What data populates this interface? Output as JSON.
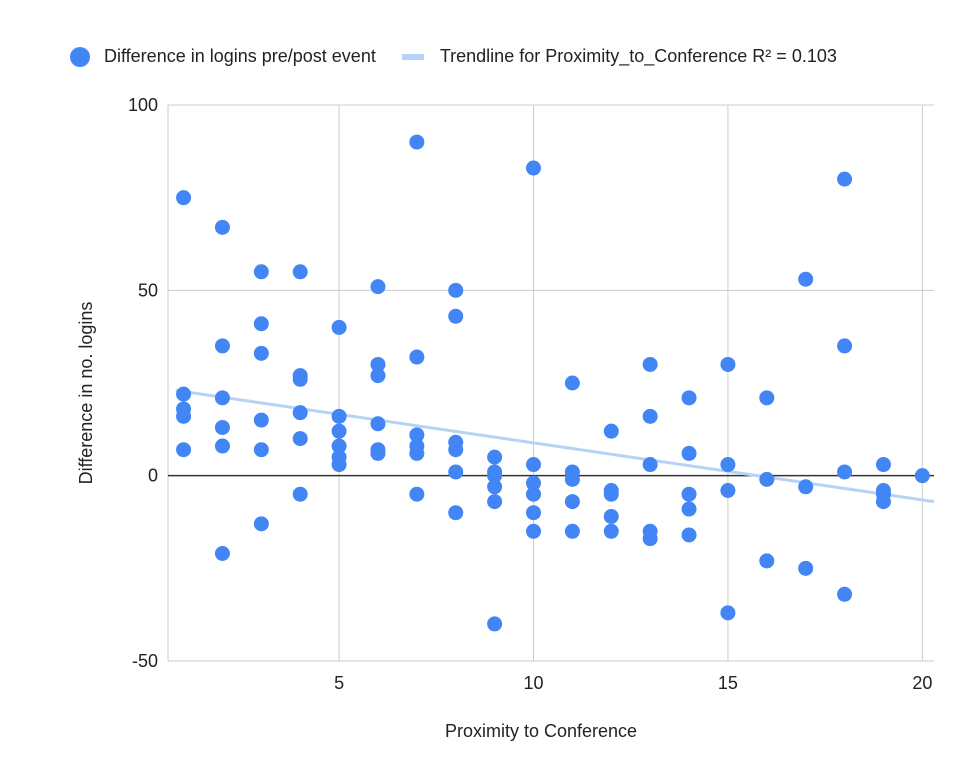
{
  "chart_data": {
    "type": "scatter",
    "xlabel": "Proximity to Conference",
    "ylabel": "Difference in no. logins",
    "xlim": [
      0.6,
      20.3
    ],
    "ylim": [
      -50,
      100
    ],
    "x_ticks": [
      5,
      10,
      15,
      20
    ],
    "y_ticks": [
      -50,
      0,
      50,
      100
    ],
    "grid": true,
    "legend_position": "top-left",
    "series": [
      {
        "name": "Difference in logins pre/post event",
        "color": "#4285f4",
        "points": [
          {
            "x": 1,
            "y": 75
          },
          {
            "x": 1,
            "y": 22
          },
          {
            "x": 1,
            "y": 18
          },
          {
            "x": 1,
            "y": 16
          },
          {
            "x": 1,
            "y": 7
          },
          {
            "x": 2,
            "y": 67
          },
          {
            "x": 2,
            "y": 35
          },
          {
            "x": 2,
            "y": 21
          },
          {
            "x": 2,
            "y": 13
          },
          {
            "x": 2,
            "y": 8
          },
          {
            "x": 2,
            "y": -21
          },
          {
            "x": 3,
            "y": 55
          },
          {
            "x": 3,
            "y": 41
          },
          {
            "x": 3,
            "y": 33
          },
          {
            "x": 3,
            "y": 15
          },
          {
            "x": 3,
            "y": 7
          },
          {
            "x": 3,
            "y": -13
          },
          {
            "x": 4,
            "y": 55
          },
          {
            "x": 4,
            "y": 27
          },
          {
            "x": 4,
            "y": 26
          },
          {
            "x": 4,
            "y": 17
          },
          {
            "x": 4,
            "y": 10
          },
          {
            "x": 4,
            "y": -5
          },
          {
            "x": 5,
            "y": 40
          },
          {
            "x": 5,
            "y": 16
          },
          {
            "x": 5,
            "y": 12
          },
          {
            "x": 5,
            "y": 8
          },
          {
            "x": 5,
            "y": 5
          },
          {
            "x": 5,
            "y": 3
          },
          {
            "x": 6,
            "y": 51
          },
          {
            "x": 6,
            "y": 30
          },
          {
            "x": 6,
            "y": 27
          },
          {
            "x": 6,
            "y": 14
          },
          {
            "x": 6,
            "y": 7
          },
          {
            "x": 6,
            "y": 6
          },
          {
            "x": 7,
            "y": 90
          },
          {
            "x": 7,
            "y": 32
          },
          {
            "x": 7,
            "y": 11
          },
          {
            "x": 7,
            "y": 8
          },
          {
            "x": 7,
            "y": 6
          },
          {
            "x": 7,
            "y": -5
          },
          {
            "x": 8,
            "y": 50
          },
          {
            "x": 8,
            "y": 43
          },
          {
            "x": 8,
            "y": 9
          },
          {
            "x": 8,
            "y": 7
          },
          {
            "x": 8,
            "y": 1
          },
          {
            "x": 8,
            "y": -10
          },
          {
            "x": 9,
            "y": 5
          },
          {
            "x": 9,
            "y": 1
          },
          {
            "x": 9,
            "y": 0
          },
          {
            "x": 9,
            "y": -3
          },
          {
            "x": 9,
            "y": -7
          },
          {
            "x": 9,
            "y": -40
          },
          {
            "x": 10,
            "y": 83
          },
          {
            "x": 10,
            "y": 3
          },
          {
            "x": 10,
            "y": -2
          },
          {
            "x": 10,
            "y": -5
          },
          {
            "x": 10,
            "y": -10
          },
          {
            "x": 10,
            "y": -15
          },
          {
            "x": 11,
            "y": 25
          },
          {
            "x": 11,
            "y": 1
          },
          {
            "x": 11,
            "y": -1
          },
          {
            "x": 11,
            "y": -7
          },
          {
            "x": 11,
            "y": -15
          },
          {
            "x": 12,
            "y": 12
          },
          {
            "x": 12,
            "y": -4
          },
          {
            "x": 12,
            "y": -5
          },
          {
            "x": 12,
            "y": -11
          },
          {
            "x": 12,
            "y": -15
          },
          {
            "x": 13,
            "y": 30
          },
          {
            "x": 13,
            "y": 16
          },
          {
            "x": 13,
            "y": 3
          },
          {
            "x": 13,
            "y": -15
          },
          {
            "x": 13,
            "y": -17
          },
          {
            "x": 14,
            "y": 21
          },
          {
            "x": 14,
            "y": 6
          },
          {
            "x": 14,
            "y": -5
          },
          {
            "x": 14,
            "y": -9
          },
          {
            "x": 14,
            "y": -16
          },
          {
            "x": 15,
            "y": 30
          },
          {
            "x": 15,
            "y": 3
          },
          {
            "x": 15,
            "y": -4
          },
          {
            "x": 15,
            "y": -37
          },
          {
            "x": 16,
            "y": 21
          },
          {
            "x": 16,
            "y": -1
          },
          {
            "x": 16,
            "y": -23
          },
          {
            "x": 17,
            "y": 53
          },
          {
            "x": 17,
            "y": -3
          },
          {
            "x": 17,
            "y": -25
          },
          {
            "x": 18,
            "y": 80
          },
          {
            "x": 18,
            "y": 35
          },
          {
            "x": 18,
            "y": 1
          },
          {
            "x": 18,
            "y": -32
          },
          {
            "x": 19,
            "y": 3
          },
          {
            "x": 19,
            "y": -4
          },
          {
            "x": 19,
            "y": -5
          },
          {
            "x": 19,
            "y": -7
          },
          {
            "x": 20,
            "y": 0
          }
        ]
      }
    ],
    "trendline": {
      "name": "Trendline for Proximity_to_Conference R² = 0.103",
      "color": "#b6d2f5",
      "start": {
        "x": 0.8,
        "y": 23
      },
      "end": {
        "x": 20.3,
        "y": -7
      }
    }
  },
  "legend": {
    "series_label": "Difference in logins pre/post event",
    "trend_label": "Trendline for Proximity_to_Conference R² = 0.103"
  }
}
